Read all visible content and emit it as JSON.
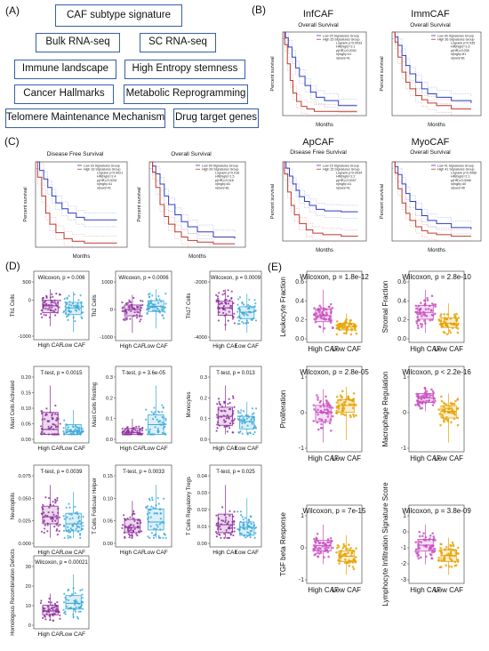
{
  "panel_labels": {
    "a": "(A)",
    "b": "(B)",
    "c": "(C)",
    "d": "(D)",
    "e": "(E)"
  },
  "panel_a_boxes": [
    "CAF subtype signature",
    "Bulk RNA-seq",
    "SC RNA-seq",
    "Immune landscape",
    "High Entropy stemness",
    "Cancer Hallmarks",
    "Metabolic Reprogramming",
    "Telomere Maintenance Mechanism",
    "Drug target genes"
  ],
  "km": {
    "inf": {
      "title": "InfCAF",
      "subtitle": "Overall Survival",
      "xlabel": "Months",
      "ylabel": "Percent survival",
      "legend": [
        "Low 25 Signatures Group",
        "High 25 Signatures Group"
      ],
      "stats": [
        "Logrank p=0.0033",
        "HR(high)=2.1",
        "p(HR)=0.0034",
        "n(high)=41",
        "n(low)=41"
      ]
    },
    "imm": {
      "title": "ImmCAF",
      "subtitle": "Overall Survival",
      "xlabel": "Months",
      "ylabel": "Percent survival",
      "legend": [
        "Low 36 Signatures Group",
        "High 36 Signatures Group"
      ],
      "stats": [
        "Logrank p=0.035",
        "HR(high)=1.6",
        "p(HR)=0.035",
        "n(high)=81",
        "n(low)=81"
      ]
    },
    "dfs": {
      "title": "",
      "subtitle": "Disease Free Survival",
      "xlabel": "Months",
      "ylabel": "Percent survival",
      "legend": [
        "Low 16 Signatures Group",
        "High 16 Signatures Group"
      ],
      "stats": [
        "Logrank p=0.0021",
        "HR(high)=2.4",
        "p(HR)=0.0031",
        "n(high)=41",
        "n(low)=41"
      ]
    },
    "os": {
      "title": "",
      "subtitle": "Overall Survival",
      "xlabel": "Months",
      "ylabel": "Percent survival",
      "legend": [
        "Low 99 Signatures Group",
        "High 99 Signatures Group"
      ],
      "stats": [
        "Logrank p=0.018",
        "HR(high)=1.5",
        "p(HR)=0.018",
        "n(high)=81",
        "n(low)=81"
      ]
    },
    "ap": {
      "title": "ApCAF",
      "subtitle": "Disease Free Survival",
      "xlabel": "Months",
      "ylabel": "Percent survival",
      "legend": [
        "Low 15 Signatures Group",
        "High 15 Signatures Group"
      ],
      "stats": [
        "Logrank p=0.0034",
        "HR(high)=2.2",
        "p(HR)=0.0037",
        "n(high)=41",
        "n(low)=41"
      ]
    },
    "myo": {
      "title": "MyoCAF",
      "subtitle": "Overall Survival",
      "xlabel": "Months",
      "ylabel": "Percent survival",
      "legend": [
        "Low 41 Signatures Group",
        "High 41 Signatures Group"
      ],
      "stats": [
        "Logrank p=0.0066",
        "HR(high)=2.1",
        "p(HR)=0.0048",
        "n(high)=40",
        "n(low)=40"
      ]
    }
  },
  "colors": {
    "km_low": "#2b3fc4",
    "km_high": "#c0392b",
    "caf_high_d": "#8b2a9a",
    "caf_low_d": "#3aa9d8",
    "caf_high_e": "#c94fc0",
    "caf_low_e": "#e6a200",
    "box_border": "#3a5da8"
  },
  "chart_data": [
    {
      "type": "box",
      "panel": "D",
      "ylabel": "Th1 Cells",
      "stat": "Wilcoxon, p = 0.006",
      "categories": [
        "High CAF",
        "Low CAF"
      ],
      "medians": [
        180,
        90
      ],
      "q1": [
        -120,
        -200
      ],
      "q3": [
        420,
        330
      ],
      "whisker_low": [
        -700,
        -950
      ],
      "whisker_high": [
        900,
        800
      ],
      "yticks": [
        "-1000",
        "0",
        "500"
      ]
    },
    {
      "type": "box",
      "panel": "D",
      "ylabel": "Th2 Cells",
      "stat": "Wilcoxon, p = 0.0006",
      "categories": [
        "High CAF",
        "Low CAF"
      ],
      "medians": [
        -30,
        120
      ],
      "q1": [
        -320,
        -120
      ],
      "q3": [
        180,
        380
      ],
      "whisker_low": [
        -1100,
        -900
      ],
      "whisker_high": [
        650,
        900
      ],
      "yticks": [
        "-1000",
        "0",
        "1000"
      ]
    },
    {
      "type": "box",
      "panel": "D",
      "ylabel": "Th17 Cells",
      "stat": "Wilcoxon, p = 0.0009",
      "categories": [
        "High CAF",
        "Low CAF"
      ],
      "medians": [
        -3600,
        -4000
      ],
      "q1": [
        -4300,
        -4600
      ],
      "q3": [
        -3000,
        -3500
      ],
      "whisker_low": [
        -5700,
        -5900
      ],
      "whisker_high": [
        -1900,
        -2300
      ],
      "yticks": [
        "-2000",
        "-4000"
      ]
    },
    {
      "type": "box",
      "panel": "D",
      "ylabel": "Mast Cells Activated",
      "stat": "T-test, p = 0.0015",
      "categories": [
        "High CAF",
        "Low CAF"
      ],
      "medians": [
        0.02,
        0.01
      ],
      "q1": [
        0.0,
        0.0
      ],
      "q3": [
        0.09,
        0.04
      ],
      "whisker_low": [
        0.0,
        0.0
      ],
      "whisker_high": [
        0.2,
        0.1
      ],
      "yticks": [
        "0.00",
        "0.05",
        "0.10",
        "0.15",
        "0.20"
      ]
    },
    {
      "type": "box",
      "panel": "D",
      "ylabel": "Mast Cells Resting",
      "stat": "T-test, p = 3.6e-05",
      "categories": [
        "High CAF",
        "Low CAF"
      ],
      "medians": [
        0.01,
        0.05
      ],
      "q1": [
        0.0,
        0.0
      ],
      "q3": [
        0.03,
        0.1
      ],
      "whisker_low": [
        0.0,
        0.0
      ],
      "whisker_high": [
        0.08,
        0.25
      ],
      "yticks": [
        "0.0",
        "0.1",
        "0.2",
        "0.3"
      ]
    },
    {
      "type": "box",
      "panel": "D",
      "ylabel": "Monocytes",
      "stat": "T-test, p = 0.013",
      "categories": [
        "High CAF",
        "Low CAF"
      ],
      "medians": [
        0.1,
        0.07
      ],
      "q1": [
        0.05,
        0.03
      ],
      "q3": [
        0.15,
        0.1
      ],
      "whisker_low": [
        0.0,
        0.0
      ],
      "whisker_high": [
        0.27,
        0.18
      ],
      "yticks": [
        "0.0",
        "0.1",
        "0.2",
        "0.3"
      ]
    },
    {
      "type": "box",
      "panel": "D",
      "ylabel": "Neutrophils",
      "stat": "T-test, p = 0.0039",
      "categories": [
        "High CAF",
        "Low CAF"
      ],
      "medians": [
        0.03,
        0.02
      ],
      "q1": [
        0.02,
        0.01
      ],
      "q3": [
        0.045,
        0.035
      ],
      "whisker_low": [
        0.0,
        0.0
      ],
      "whisker_high": [
        0.075,
        0.065
      ],
      "yticks": [
        "0.000",
        "0.025",
        "0.050",
        "0.075"
      ]
    },
    {
      "type": "box",
      "panel": "D",
      "ylabel": "T Cells Follicular Helper",
      "stat": "T-test, p = 0.0033",
      "categories": [
        "High CAF",
        "Low CAF"
      ],
      "medians": [
        0.02,
        0.03
      ],
      "q1": [
        0.01,
        0.015
      ],
      "q3": [
        0.035,
        0.055
      ],
      "whisker_low": [
        0.0,
        0.0
      ],
      "whisker_high": [
        0.07,
        0.1
      ],
      "yticks": [
        "0.00",
        "0.05",
        "0.10",
        "0.15"
      ]
    },
    {
      "type": "box",
      "panel": "D",
      "ylabel": "T Cells Regulatory Tregs",
      "stat": "T-test, p = 0.025",
      "categories": [
        "High CAF",
        "Low CAF"
      ],
      "medians": [
        0.01,
        0.008
      ],
      "q1": [
        0.004,
        0.002
      ],
      "q3": [
        0.018,
        0.012
      ],
      "whisker_low": [
        0.0,
        0.0
      ],
      "whisker_high": [
        0.04,
        0.03
      ],
      "yticks": [
        "0.00",
        "0.01",
        "0.02",
        "0.03",
        "0.04"
      ]
    },
    {
      "type": "box",
      "panel": "D",
      "ylabel": "Homologous Recombination Defects",
      "stat": "Wilcoxon, p = 0.00021",
      "categories": [
        "High CAF",
        "Low CAF"
      ],
      "medians": [
        5,
        9
      ],
      "q1": [
        3,
        6
      ],
      "q3": [
        8,
        13
      ],
      "whisker_low": [
        0,
        1
      ],
      "whisker_high": [
        14,
        24
      ],
      "yticks": [
        "0",
        "10",
        "20",
        "30"
      ]
    },
    {
      "type": "box",
      "panel": "E",
      "ylabel": "Leukocyte Fraction",
      "stat": "Wilcoxon, p = 1.8e-12",
      "categories": [
        "High CAF",
        "Low CAF"
      ],
      "medians": [
        0.25,
        0.1
      ],
      "q1": [
        0.17,
        0.06
      ],
      "q3": [
        0.34,
        0.15
      ],
      "whisker_low": [
        0.02,
        0.0
      ],
      "whisker_high": [
        0.6,
        0.28
      ],
      "yticks": [
        "0.0",
        "0.2",
        "0.4",
        "0.6"
      ]
    },
    {
      "type": "box",
      "panel": "E",
      "ylabel": "Stromal Fraction",
      "stat": "Wilcoxon, p = 2.8e-10",
      "categories": [
        "High CAF",
        "Low CAF"
      ],
      "medians": [
        0.32,
        0.16
      ],
      "q1": [
        0.22,
        0.1
      ],
      "q3": [
        0.42,
        0.24
      ],
      "whisker_low": [
        0.02,
        0.0
      ],
      "whisker_high": [
        0.65,
        0.45
      ],
      "yticks": [
        "0.0",
        "0.2",
        "0.4",
        "0.6"
      ]
    },
    {
      "type": "box",
      "panel": "E",
      "ylabel": "Proliferation",
      "stat": "Wilcoxon, p = 2.8e-05",
      "categories": [
        "High CAF",
        "Low CAF"
      ],
      "medians": [
        0.0,
        0.3
      ],
      "q1": [
        -0.4,
        0.0
      ],
      "q3": [
        0.3,
        0.55
      ],
      "whisker_low": [
        -1.3,
        -1.2
      ],
      "whisker_high": [
        1.0,
        1.1
      ],
      "yticks": [
        "-1",
        "0",
        "1"
      ]
    },
    {
      "type": "box",
      "panel": "E",
      "ylabel": "Macrophage Regulation",
      "stat": "Wilcoxon, p < 2.2e-16",
      "categories": [
        "High CAF",
        "Low CAF"
      ],
      "medians": [
        0.8,
        0.2
      ],
      "q1": [
        0.6,
        -0.1
      ],
      "q3": [
        1.0,
        0.45
      ],
      "whisker_low": [
        0.2,
        -1.2
      ],
      "whisker_high": [
        1.3,
        1.0
      ],
      "yticks": [
        "-1",
        "0",
        "1"
      ]
    },
    {
      "type": "box",
      "panel": "E",
      "ylabel": "TGF beta Response",
      "stat": "Wilcoxon, p = 7e-15",
      "categories": [
        "High CAF",
        "Low CAF"
      ],
      "medians": [
        0.1,
        -0.3
      ],
      "q1": [
        -0.1,
        -0.5
      ],
      "q3": [
        0.3,
        -0.1
      ],
      "whisker_low": [
        -0.6,
        -1.0
      ],
      "whisker_high": [
        0.9,
        0.5
      ],
      "yticks": [
        "-1",
        "0",
        "1"
      ]
    },
    {
      "type": "box",
      "panel": "E",
      "ylabel": "Lymphocyte Infiltration Signature Score",
      "stat": "Wilcoxon, p = 3.8e-09",
      "categories": [
        "High CAF",
        "Low CAF"
      ],
      "medians": [
        -0.9,
        -1.6
      ],
      "q1": [
        -1.3,
        -2.0
      ],
      "q3": [
        -0.5,
        -1.2
      ],
      "whisker_low": [
        -2.2,
        -2.9
      ],
      "whisker_high": [
        0.5,
        -0.4
      ],
      "yticks": [
        "-3",
        "-2",
        "-1",
        "0",
        "1"
      ]
    }
  ]
}
